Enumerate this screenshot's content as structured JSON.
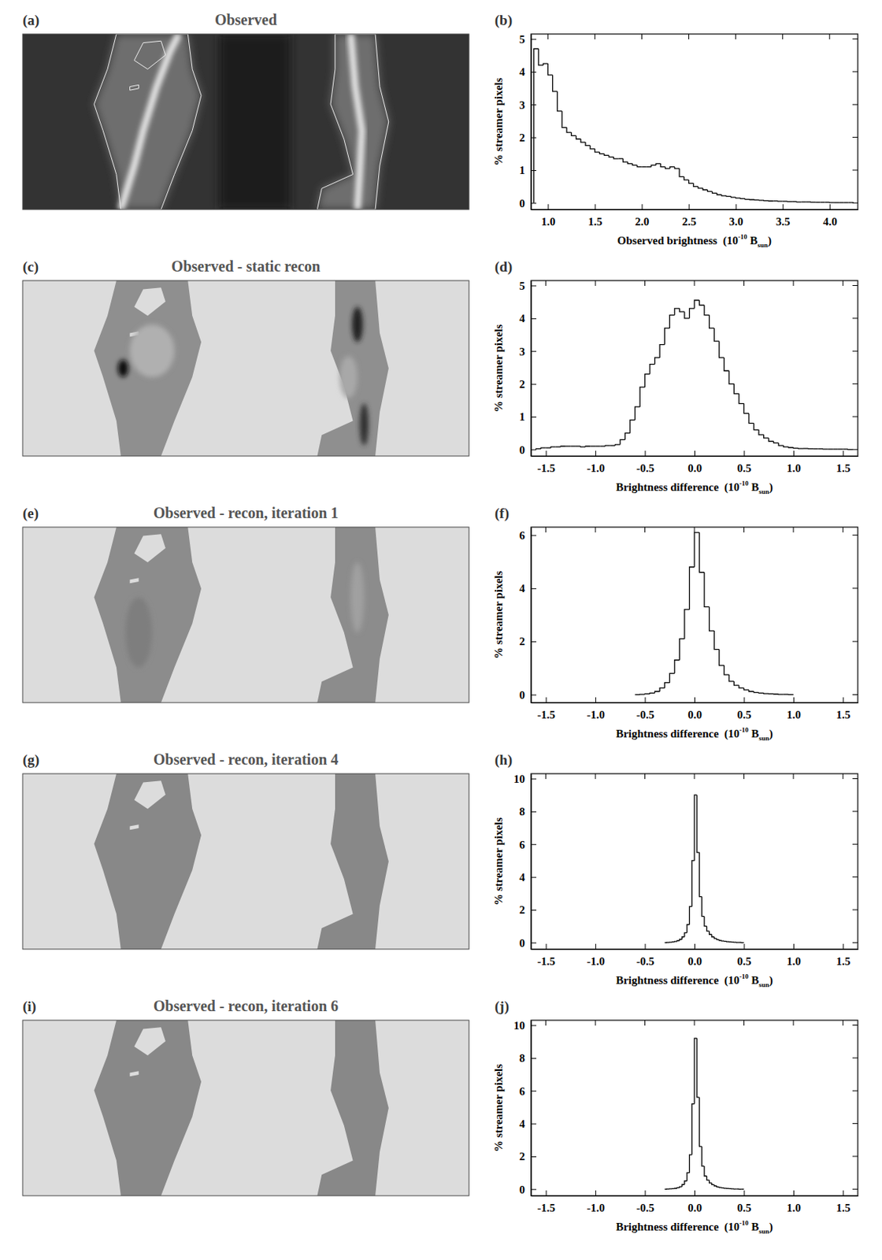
{
  "chart_data": [
    {
      "type": "image",
      "panel": "(a)",
      "title": "Observed"
    },
    {
      "type": "histogram",
      "panel": "(b)",
      "x_label": {
        "text": "Observed brightness  (10",
        "sup": "-10",
        "base": " B",
        "sub": "sun",
        "end": ")"
      },
      "y_label": "% streamer pixels",
      "bins": [
        0.85,
        0.9,
        0.95,
        1.0,
        1.05,
        1.1,
        1.15,
        1.2,
        1.25,
        1.3,
        1.35,
        1.4,
        1.45,
        1.5,
        1.55,
        1.6,
        1.65,
        1.7,
        1.75,
        1.8,
        1.85,
        1.9,
        1.95,
        2.0,
        2.05,
        2.1,
        2.15,
        2.2,
        2.25,
        2.3,
        2.35,
        2.4,
        2.45,
        2.5,
        2.55,
        2.6,
        2.65,
        2.7,
        2.75,
        2.8,
        2.85,
        2.9,
        2.95,
        3.0,
        3.05,
        3.1,
        3.15,
        3.2,
        3.25,
        3.3,
        3.35,
        3.4,
        3.45,
        3.5,
        3.55,
        3.6,
        3.65,
        3.7,
        3.75,
        3.8,
        3.85,
        3.9,
        3.95,
        4.0,
        4.05,
        4.1,
        4.15,
        4.2,
        4.25
      ],
      "counts": [
        4.7,
        4.2,
        4.25,
        3.9,
        3.4,
        2.8,
        2.3,
        2.15,
        2.05,
        1.95,
        1.85,
        1.75,
        1.65,
        1.55,
        1.5,
        1.45,
        1.4,
        1.35,
        1.35,
        1.25,
        1.2,
        1.15,
        1.1,
        1.1,
        1.1,
        1.15,
        1.2,
        1.1,
        1.05,
        1.1,
        1.05,
        0.8,
        0.7,
        0.6,
        0.5,
        0.45,
        0.4,
        0.35,
        0.3,
        0.25,
        0.22,
        0.2,
        0.17,
        0.15,
        0.13,
        0.11,
        0.1,
        0.09,
        0.08,
        0.07,
        0.06,
        0.06,
        0.05,
        0.05,
        0.04,
        0.04,
        0.03,
        0.03,
        0.03,
        0.02,
        0.02,
        0.02,
        0.02,
        0.01,
        0.01,
        0.01,
        0.01,
        0.01
      ],
      "xlim": [
        0.82,
        4.3
      ],
      "ylim": [
        -0.2,
        5.15
      ],
      "xticks": [
        {
          "value": 1,
          "label": "1.0"
        },
        {
          "value": 1.5,
          "label": "1.5"
        },
        {
          "value": 2,
          "label": "2.0"
        },
        {
          "value": 2.5,
          "label": "2.5"
        },
        {
          "value": 3,
          "label": "3.0"
        },
        {
          "value": 3.5,
          "label": "3.5"
        },
        {
          "value": 4,
          "label": "4.0"
        }
      ],
      "yticks": [
        0,
        1,
        2,
        3,
        4,
        5
      ]
    },
    {
      "type": "image",
      "panel": "(c)",
      "title": "Observed - static recon"
    },
    {
      "type": "histogram",
      "panel": "(d)",
      "x_label": {
        "text": "Brightness difference  (10",
        "sup": "-10",
        "base": " B",
        "sub": "sun",
        "end": ")"
      },
      "y_label": "% streamer pixels",
      "bins": [
        -1.6,
        -1.55,
        -1.5,
        -1.45,
        -1.4,
        -1.35,
        -1.3,
        -1.25,
        -1.2,
        -1.15,
        -1.1,
        -1.05,
        -1.0,
        -0.95,
        -0.9,
        -0.85,
        -0.8,
        -0.75,
        -0.7,
        -0.65,
        -0.6,
        -0.55,
        -0.5,
        -0.45,
        -0.4,
        -0.35,
        -0.3,
        -0.25,
        -0.2,
        -0.15,
        -0.1,
        -0.05,
        0,
        0.05,
        0.1,
        0.15,
        0.2,
        0.25,
        0.3,
        0.35,
        0.4,
        0.45,
        0.5,
        0.55,
        0.6,
        0.65,
        0.7,
        0.75,
        0.8,
        0.85,
        0.9,
        0.95,
        1.0,
        1.05,
        1.1,
        1.15,
        1.2,
        1.25,
        1.3,
        1.35,
        1.4,
        1.45,
        1.5,
        1.55,
        1.6
      ],
      "counts": [
        0.02,
        0.05,
        0.05,
        0.08,
        0.08,
        0.1,
        0.1,
        0.1,
        0.1,
        0.08,
        0.1,
        0.1,
        0.1,
        0.1,
        0.12,
        0.12,
        0.15,
        0.3,
        0.5,
        0.9,
        1.3,
        1.9,
        2.3,
        2.6,
        2.8,
        3.2,
        3.7,
        4.1,
        4.3,
        4.2,
        4.0,
        4.3,
        4.55,
        4.4,
        4.1,
        3.7,
        3.3,
        2.8,
        2.4,
        2.0,
        1.7,
        1.4,
        1.1,
        0.8,
        0.6,
        0.45,
        0.35,
        0.25,
        0.2,
        0.12,
        0.08,
        0.06,
        0.04,
        0.03,
        0.03,
        0.02,
        0.02,
        0.02,
        0.01,
        0.01,
        0.01,
        0.01,
        0.01,
        0.0
      ],
      "xlim": [
        -1.65,
        1.65
      ],
      "ylim": [
        -0.2,
        5.15
      ],
      "xticks": [
        {
          "value": -1.5,
          "label": "-1.5"
        },
        {
          "value": -1,
          "label": "-1.0"
        },
        {
          "value": -0.5,
          "label": "-0.5"
        },
        {
          "value": 0,
          "label": "0.0"
        },
        {
          "value": 0.5,
          "label": "0.5"
        },
        {
          "value": 1,
          "label": "1.0"
        },
        {
          "value": 1.5,
          "label": "1.5"
        }
      ],
      "yticks": [
        0,
        1,
        2,
        3,
        4,
        5
      ]
    },
    {
      "type": "image",
      "panel": "(e)",
      "title": "Observed - recon, iteration 1"
    },
    {
      "type": "histogram",
      "panel": "(f)",
      "x_label": {
        "text": "Brightness difference  (10",
        "sup": "-10",
        "base": " B",
        "sub": "sun",
        "end": ")"
      },
      "y_label": "% streamer pixels",
      "bins": [
        -0.6,
        -0.55,
        -0.5,
        -0.45,
        -0.4,
        -0.35,
        -0.3,
        -0.25,
        -0.2,
        -0.15,
        -0.1,
        -0.05,
        0,
        0.05,
        0.1,
        0.15,
        0.2,
        0.25,
        0.3,
        0.35,
        0.4,
        0.45,
        0.5,
        0.55,
        0.6,
        0.65,
        0.7,
        0.75,
        0.8,
        0.85,
        0.9,
        0.95,
        1.0
      ],
      "counts": [
        0.0,
        0.01,
        0.03,
        0.06,
        0.12,
        0.25,
        0.45,
        0.8,
        1.3,
        2.1,
        3.2,
        4.8,
        6.1,
        4.6,
        3.3,
        2.4,
        1.7,
        1.1,
        0.75,
        0.5,
        0.35,
        0.25,
        0.18,
        0.12,
        0.08,
        0.06,
        0.04,
        0.03,
        0.02,
        0.01,
        0.01,
        0.0
      ],
      "xlim": [
        -1.65,
        1.65
      ],
      "ylim": [
        -0.3,
        6.3
      ],
      "xticks": [
        {
          "value": -1.5,
          "label": "-1.5"
        },
        {
          "value": -1,
          "label": "-1.0"
        },
        {
          "value": -0.5,
          "label": "-0.5"
        },
        {
          "value": 0,
          "label": "0.0"
        },
        {
          "value": 0.5,
          "label": "0.5"
        },
        {
          "value": 1,
          "label": "1.0"
        },
        {
          "value": 1.5,
          "label": "1.5"
        }
      ],
      "yticks": [
        0,
        2,
        4,
        6
      ]
    },
    {
      "type": "image",
      "panel": "(g)",
      "title": "Observed - recon, iteration 4"
    },
    {
      "type": "histogram",
      "panel": "(h)",
      "x_label": {
        "text": "Brightness difference  (10",
        "sup": "-10",
        "base": " B",
        "sub": "sun",
        "end": ")"
      },
      "y_label": "% streamer pixels",
      "bins": [
        -0.3,
        -0.275,
        -0.25,
        -0.225,
        -0.2,
        -0.175,
        -0.15,
        -0.125,
        -0.1,
        -0.075,
        -0.05,
        -0.025,
        0,
        0.025,
        0.05,
        0.075,
        0.1,
        0.125,
        0.15,
        0.175,
        0.2,
        0.225,
        0.25,
        0.275,
        0.3,
        0.325,
        0.35,
        0.375,
        0.4,
        0.425,
        0.45,
        0.475,
        0.5
      ],
      "counts": [
        0.0,
        0.01,
        0.02,
        0.04,
        0.07,
        0.12,
        0.2,
        0.35,
        0.6,
        1.1,
        2.2,
        5.0,
        9.0,
        5.5,
        2.8,
        1.6,
        1.0,
        0.7,
        0.5,
        0.35,
        0.25,
        0.18,
        0.13,
        0.1,
        0.08,
        0.06,
        0.04,
        0.03,
        0.02,
        0.01,
        0.01,
        0.0
      ],
      "xlim": [
        -1.65,
        1.65
      ],
      "ylim": [
        -0.4,
        10.3
      ],
      "xticks": [
        {
          "value": -1.5,
          "label": "-1.5"
        },
        {
          "value": -1,
          "label": "-1.0"
        },
        {
          "value": -0.5,
          "label": "-0.5"
        },
        {
          "value": 0,
          "label": "0.0"
        },
        {
          "value": 0.5,
          "label": "0.5"
        },
        {
          "value": 1,
          "label": "1.0"
        },
        {
          "value": 1.5,
          "label": "1.5"
        }
      ],
      "yticks": [
        0,
        2,
        4,
        6,
        8,
        10
      ]
    },
    {
      "type": "image",
      "panel": "(i)",
      "title": "Observed - recon, iteration 6"
    },
    {
      "type": "histogram",
      "panel": "(j)",
      "x_label": {
        "text": "Brightness difference  (10",
        "sup": "-10",
        "base": " B",
        "sub": "sun",
        "end": ")"
      },
      "y_label": "% streamer pixels",
      "bins": [
        -0.3,
        -0.275,
        -0.25,
        -0.225,
        -0.2,
        -0.175,
        -0.15,
        -0.125,
        -0.1,
        -0.075,
        -0.05,
        -0.025,
        0,
        0.025,
        0.05,
        0.075,
        0.1,
        0.125,
        0.15,
        0.175,
        0.2,
        0.225,
        0.25,
        0.275,
        0.3,
        0.325,
        0.35,
        0.375,
        0.4,
        0.425,
        0.45,
        0.475,
        0.5
      ],
      "counts": [
        0.0,
        0.01,
        0.02,
        0.03,
        0.05,
        0.09,
        0.15,
        0.28,
        0.5,
        1.0,
        2.1,
        5.2,
        9.2,
        5.6,
        2.6,
        1.4,
        0.8,
        0.55,
        0.38,
        0.27,
        0.2,
        0.14,
        0.1,
        0.08,
        0.06,
        0.04,
        0.03,
        0.02,
        0.01,
        0.01,
        0.0,
        0.0
      ],
      "xlim": [
        -1.65,
        1.65
      ],
      "ylim": [
        -0.4,
        10.3
      ],
      "xticks": [
        {
          "value": -1.5,
          "label": "-1.5"
        },
        {
          "value": -1,
          "label": "-1.0"
        },
        {
          "value": -0.5,
          "label": "-0.5"
        },
        {
          "value": 0,
          "label": "0.0"
        },
        {
          "value": 0.5,
          "label": "0.5"
        },
        {
          "value": 1,
          "label": "1.0"
        },
        {
          "value": 1.5,
          "label": "1.5"
        }
      ],
      "yticks": [
        0,
        2,
        4,
        6,
        8,
        10
      ]
    }
  ]
}
